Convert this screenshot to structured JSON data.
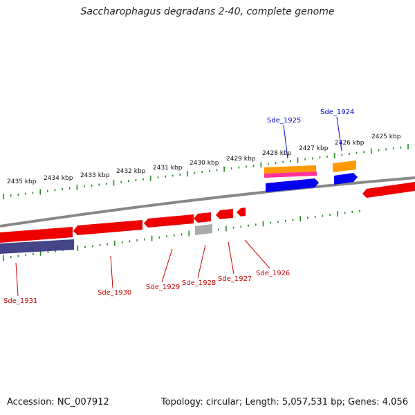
{
  "title": "Saccharophagus degradans 2-40, complete genome",
  "footer": {
    "accession": "Accession: NC_007912",
    "summary": "Topology: circular; Length: 5,057,531 bp; Genes: 4,056"
  },
  "scale_labels": [
    "2425 kbp",
    "2426 kbp",
    "2427 kbp",
    "2428 kbp",
    "2429 kbp",
    "2430 kbp",
    "2431 kbp",
    "2432 kbp",
    "2433 kbp",
    "2434 kbp",
    "2435 kbp"
  ],
  "gene_labels": {
    "forward": [
      "Sde_1925",
      "Sde_1924"
    ],
    "reverse": [
      "Sde_1931",
      "Sde_1930",
      "Sde_1929",
      "Sde_1928",
      "Sde_1927",
      "Sde_1926"
    ]
  },
  "colors": {
    "forward_label": "#0000cc",
    "reverse_label": "#cc0000",
    "red_feature": "#ee0000",
    "blue_feature": "#0000ee",
    "orange_feature": "#ff9900",
    "pink_feature": "#ff3399",
    "navy_feature": "#444488",
    "gray_feature": "#aaaaaa",
    "tick": "#228822",
    "backbone": "#888888"
  }
}
